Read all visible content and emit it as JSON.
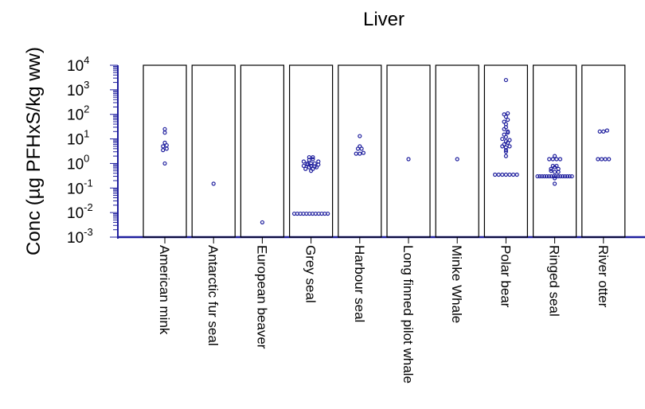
{
  "chart_data": {
    "type": "scatter",
    "title": "Liver",
    "ylabel": "Conc (µg PFHxS/kg ww)",
    "xlabel": "",
    "yscale": "log",
    "ylim": [
      0.001,
      10000
    ],
    "yticks": [
      {
        "base": "10",
        "exp": "4",
        "value": 10000
      },
      {
        "base": "10",
        "exp": "3",
        "value": 1000
      },
      {
        "base": "10",
        "exp": "2",
        "value": 100
      },
      {
        "base": "10",
        "exp": "1",
        "value": 10
      },
      {
        "base": "10",
        "exp": "0",
        "value": 1
      },
      {
        "base": "10",
        "exp": "-1",
        "value": 0.1
      },
      {
        "base": "10",
        "exp": "-2",
        "value": 0.01
      },
      {
        "base": "10",
        "exp": "-3",
        "value": 0.001
      }
    ],
    "colors": {
      "points": "#1f1f9e",
      "axis": "#1f1f9e",
      "panel": "#000000"
    },
    "categories": [
      "American mink",
      "Antarctic fur seal",
      "European beaver",
      "Grey seal",
      "Harbour seal",
      "Long finned pilot whale",
      "Minke Whale",
      "Polar bear",
      "Ringed seal",
      "River otter"
    ],
    "series": [
      {
        "category": "American mink",
        "values": [
          5,
          18,
          3.5,
          7,
          4,
          25,
          5.5,
          1
        ]
      },
      {
        "category": "Antarctic fur seal",
        "values": [
          0.15
        ]
      },
      {
        "category": "European beaver",
        "values": [
          0.004
        ]
      },
      {
        "category": "Grey seal",
        "values": [
          1.8,
          1.2,
          0.6,
          1.0,
          0.8,
          1.0,
          0.7,
          1.4,
          0.9,
          0.6,
          0.8,
          1.5,
          1.0,
          0.7,
          0.75,
          1.8,
          0.9,
          1.2,
          0.5,
          0.009,
          0.009,
          0.009,
          0.009,
          0.009,
          0.009,
          0.009,
          0.009,
          0.009,
          0.009,
          0.009,
          0.009
        ]
      },
      {
        "category": "Harbour seal",
        "values": [
          4,
          13,
          2.5,
          2.5,
          5,
          2.7,
          4
        ]
      },
      {
        "category": "Long finned pilot whale",
        "values": [
          1.5
        ]
      },
      {
        "category": "Minke Whale",
        "values": [
          1.5
        ]
      },
      {
        "category": "Polar bear",
        "values": [
          2500,
          100,
          110,
          50,
          80,
          30,
          60,
          25,
          40,
          15,
          20,
          10,
          18,
          8,
          12,
          6,
          9,
          5,
          7,
          4.5,
          3,
          5,
          2,
          3.5,
          0.35,
          0.35,
          0.35,
          0.35,
          0.35,
          0.35,
          0.35
        ]
      },
      {
        "category": "Ringed seal",
        "values": [
          1.5,
          1.5,
          1.5,
          2,
          1.5,
          0.8,
          0.6,
          0.8,
          0.7,
          0.5,
          0.6,
          0.45,
          0.45,
          0.3,
          0.3,
          0.3,
          0.3,
          0.3,
          0.3,
          0.3,
          0.3,
          0.3,
          0.3,
          0.3,
          0.3,
          0.3,
          0.3,
          0.3,
          0.3,
          0.25,
          0.15
        ]
      },
      {
        "category": "River otter",
        "values": [
          20,
          20,
          22,
          1.5,
          1.5,
          1.5,
          1.5
        ]
      }
    ]
  }
}
